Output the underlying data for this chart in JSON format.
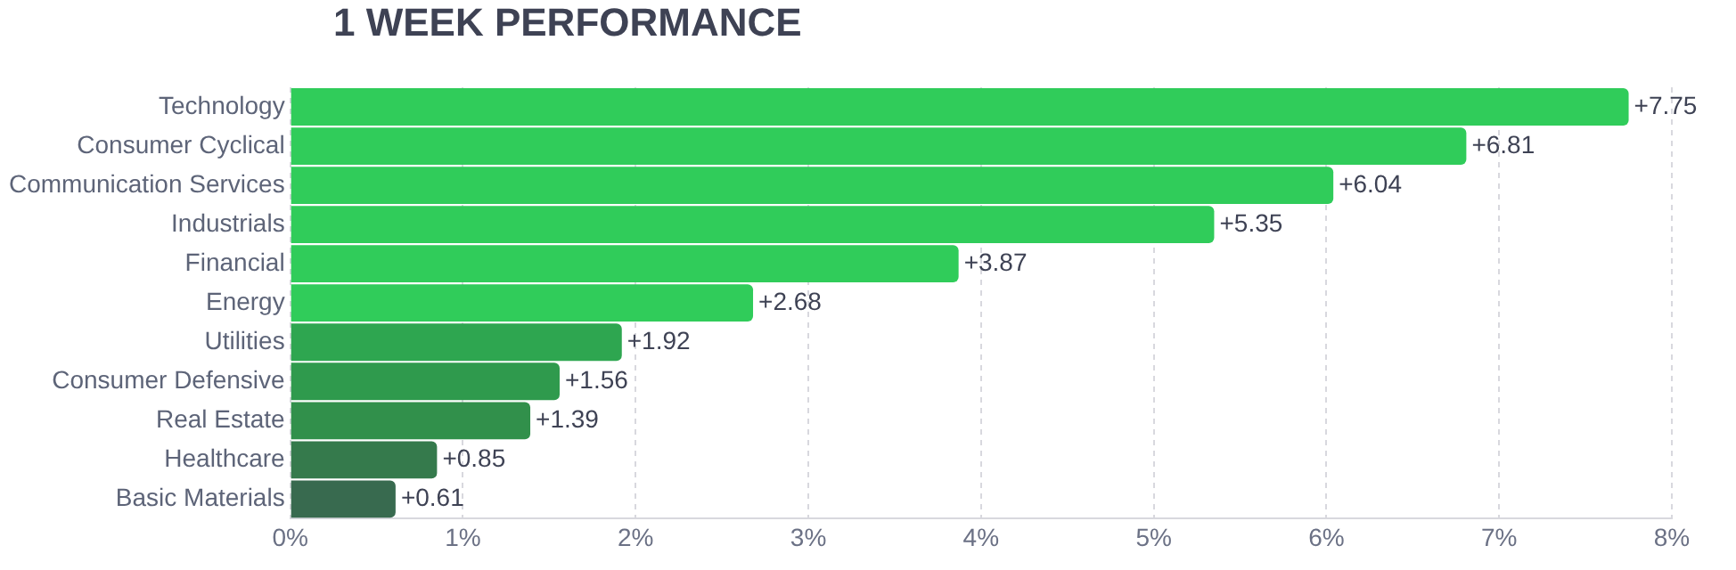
{
  "chart_data": {
    "type": "bar",
    "orientation": "horizontal",
    "title": "1 WEEK PERFORMANCE",
    "categories": [
      "Technology",
      "Consumer Cyclical",
      "Communication Services",
      "Industrials",
      "Financial",
      "Energy",
      "Utilities",
      "Consumer Defensive",
      "Real Estate",
      "Healthcare",
      "Basic Materials"
    ],
    "values": [
      7.75,
      6.81,
      6.04,
      5.35,
      3.87,
      2.68,
      1.92,
      1.56,
      1.39,
      0.85,
      0.61
    ],
    "value_labels": [
      "+7.75",
      "+6.81",
      "+6.04",
      "+5.35",
      "+3.87",
      "+2.68",
      "+1.92",
      "+1.56",
      "+1.39",
      "+0.85",
      "+0.61"
    ],
    "colors": [
      "#30cc5a",
      "#30cc5a",
      "#30cc5a",
      "#30cc5a",
      "#30cc5a",
      "#30cc5a",
      "#2ea650",
      "#2f9a4d",
      "#31904b",
      "#357a4c",
      "#386a4f"
    ],
    "xlim": [
      0,
      8
    ],
    "xticks": [
      {
        "value": 0,
        "label": "0%"
      },
      {
        "value": 1,
        "label": "1%"
      },
      {
        "value": 2,
        "label": "2%"
      },
      {
        "value": 3,
        "label": "3%"
      },
      {
        "value": 4,
        "label": "4%"
      },
      {
        "value": 5,
        "label": "5%"
      },
      {
        "value": 6,
        "label": "6%"
      },
      {
        "value": 7,
        "label": "7%"
      },
      {
        "value": 8,
        "label": "8%"
      }
    ],
    "grid": "x",
    "legend": false
  }
}
